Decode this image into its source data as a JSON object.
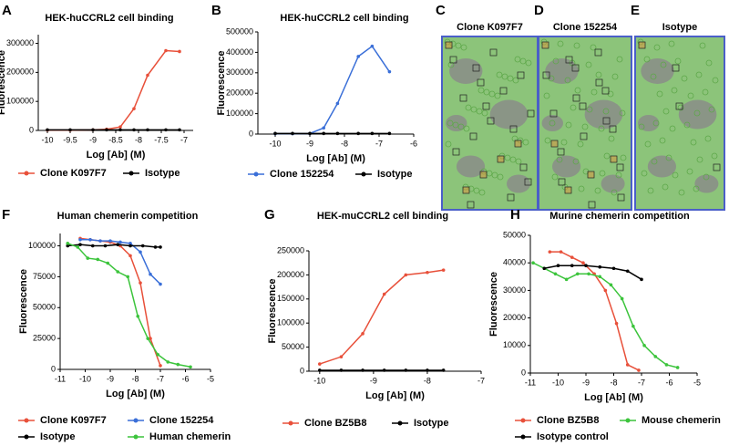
{
  "chart_data": [
    {
      "type": "line",
      "panel": "A",
      "title": "HEK-huCCRL2 cell binding",
      "xlabel": "Log [Ab] (M)",
      "ylabel": "Fluorescence",
      "xlim": [
        -10.2,
        -6.8
      ],
      "ylim": [
        0,
        330000
      ],
      "xticks": [
        -10,
        -9.5,
        -9,
        -8.5,
        -8,
        -7.5,
        -7
      ],
      "yticks": [
        0,
        100000,
        200000,
        300000
      ],
      "series": [
        {
          "name": "Clone K097F7",
          "color": "#e8503a",
          "x": [
            -10,
            -9.5,
            -9,
            -8.7,
            -8.4,
            -8.1,
            -7.8,
            -7.4,
            -7.1
          ],
          "values": [
            1000,
            1000,
            2000,
            4000,
            12000,
            75000,
            190000,
            275000,
            272000
          ]
        },
        {
          "name": "Isotype",
          "color": "#000000",
          "x": [
            -10,
            -9.5,
            -9,
            -8.7,
            -8.4,
            -8.1,
            -7.8,
            -7.4,
            -7.1
          ],
          "values": [
            2000,
            2000,
            2000,
            2000,
            2000,
            2000,
            2000,
            2000,
            2000
          ]
        }
      ]
    },
    {
      "type": "line",
      "panel": "B",
      "title": "HEK-huCCRL2 cell binding",
      "xlabel": "Log [Ab] (M)",
      "ylabel": "Fluorescence",
      "xlim": [
        -10.5,
        -6
      ],
      "ylim": [
        0,
        500000
      ],
      "xticks": [
        -10,
        -9,
        -8,
        -7,
        -6
      ],
      "yticks": [
        0,
        100000,
        200000,
        300000,
        400000,
        500000
      ],
      "series": [
        {
          "name": "Clone 152254",
          "color": "#3a6fd8",
          "x": [
            -10,
            -9.5,
            -9,
            -8.6,
            -8.2,
            -7.6,
            -7.2,
            -6.7
          ],
          "values": [
            2000,
            2000,
            3000,
            30000,
            150000,
            380000,
            430000,
            305000
          ]
        },
        {
          "name": "Isotype",
          "color": "#000000",
          "x": [
            -10,
            -9.5,
            -9,
            -8.6,
            -8.2,
            -7.6,
            -7.2,
            -6.7
          ],
          "values": [
            3000,
            3000,
            3000,
            3000,
            3000,
            3000,
            3000,
            3000
          ]
        }
      ]
    },
    {
      "type": "image",
      "panel": "C",
      "title": "Clone K097F7"
    },
    {
      "type": "image",
      "panel": "D",
      "title": "Clone 152254"
    },
    {
      "type": "image",
      "panel": "E",
      "title": "Isotype"
    },
    {
      "type": "line",
      "panel": "F",
      "title": "Human chemerin competition",
      "xlabel": "Log [Ab] (M)",
      "ylabel": "Fluorescence",
      "xlim": [
        -11,
        -5
      ],
      "ylim": [
        0,
        110000
      ],
      "xticks": [
        -11,
        -10,
        -9,
        -8,
        -7,
        -6,
        -5
      ],
      "yticks": [
        0,
        25000,
        50000,
        75000,
        100000
      ],
      "series": [
        {
          "name": "Clone K097F7",
          "color": "#e8503a",
          "x": [
            -10.2,
            -9.8,
            -9.4,
            -9,
            -8.6,
            -8.2,
            -7.8,
            -7.4,
            -7
          ],
          "values": [
            106000,
            105000,
            104000,
            103000,
            100000,
            92000,
            70000,
            25000,
            3000
          ]
        },
        {
          "name": "Clone 152254",
          "color": "#3a6fd8",
          "x": [
            -10.2,
            -9.8,
            -9.4,
            -9,
            -8.6,
            -8.2,
            -7.8,
            -7.4,
            -7
          ],
          "values": [
            105000,
            105000,
            104000,
            104000,
            103000,
            102000,
            95000,
            77000,
            69000
          ]
        },
        {
          "name": "Isotype",
          "color": "#000000",
          "x": [
            -10.7,
            -10.2,
            -9.7,
            -9.2,
            -8.7,
            -8.2,
            -7.7,
            -7.2,
            -7
          ],
          "values": [
            100000,
            101000,
            100000,
            100000,
            101000,
            100000,
            100000,
            99000,
            99000
          ]
        },
        {
          "name": "Human chemerin",
          "color": "#3cc43c",
          "x": [
            -10.7,
            -10.3,
            -9.9,
            -9.5,
            -9.1,
            -8.7,
            -8.3,
            -7.9,
            -7.5,
            -7.1,
            -6.7,
            -6.3,
            -5.8
          ],
          "values": [
            102000,
            99000,
            90000,
            89000,
            86000,
            79000,
            75000,
            43000,
            25000,
            12000,
            6000,
            4000,
            2000
          ]
        }
      ]
    },
    {
      "type": "line",
      "panel": "G",
      "title": "HEK-muCCRL2 cell binding",
      "xlabel": "Log [Ab] (M)",
      "ylabel": "Fluorescence",
      "xlim": [
        -10.2,
        -7
      ],
      "ylim": [
        0,
        250000
      ],
      "xticks": [
        -10,
        -9,
        -8,
        -7
      ],
      "yticks": [
        0,
        50000,
        100000,
        150000,
        200000,
        250000
      ],
      "series": [
        {
          "name": "Clone BZ5B8",
          "color": "#e8503a",
          "x": [
            -10,
            -9.6,
            -9.2,
            -8.8,
            -8.4,
            -8,
            -7.7
          ],
          "values": [
            15000,
            30000,
            78000,
            160000,
            200000,
            205000,
            210000
          ]
        },
        {
          "name": "Isotype",
          "color": "#000000",
          "x": [
            -10,
            -9.6,
            -9.2,
            -8.8,
            -8.4,
            -8,
            -7.7
          ],
          "values": [
            2000,
            2000,
            2000,
            2000,
            2000,
            2000,
            2000
          ]
        }
      ]
    },
    {
      "type": "line",
      "panel": "H",
      "title": "Murine chemerin competition",
      "xlabel": "Log [Ab] (M)",
      "ylabel": "Fluorescence",
      "xlim": [
        -11,
        -5
      ],
      "ylim": [
        0,
        50000
      ],
      "xticks": [
        -11,
        -10,
        -9,
        -8,
        -7,
        -6,
        -5
      ],
      "yticks": [
        0,
        10000,
        20000,
        30000,
        40000,
        50000
      ],
      "series": [
        {
          "name": "Clone BZ5B8",
          "color": "#e8503a",
          "x": [
            -10.3,
            -9.9,
            -9.5,
            -9.1,
            -8.7,
            -8.3,
            -7.9,
            -7.5,
            -7.1
          ],
          "values": [
            44000,
            44000,
            42000,
            40000,
            36000,
            30000,
            18000,
            3000,
            1000
          ]
        },
        {
          "name": "Mouse chemerin",
          "color": "#3cc43c",
          "x": [
            -10.9,
            -10.5,
            -10.1,
            -9.7,
            -9.3,
            -8.9,
            -8.5,
            -8.1,
            -7.7,
            -7.3,
            -6.9,
            -6.5,
            -6.1,
            -5.7
          ],
          "values": [
            40000,
            38000,
            36000,
            34000,
            36000,
            36000,
            35000,
            32000,
            27000,
            17000,
            10000,
            6000,
            3000,
            2000
          ]
        },
        {
          "name": "Isotype control",
          "color": "#000000",
          "x": [
            -10.5,
            -10,
            -9.5,
            -9,
            -8.5,
            -8,
            -7.5,
            -7
          ],
          "values": [
            38000,
            39000,
            39000,
            39000,
            38500,
            38000,
            37000,
            34000
          ]
        }
      ]
    }
  ]
}
